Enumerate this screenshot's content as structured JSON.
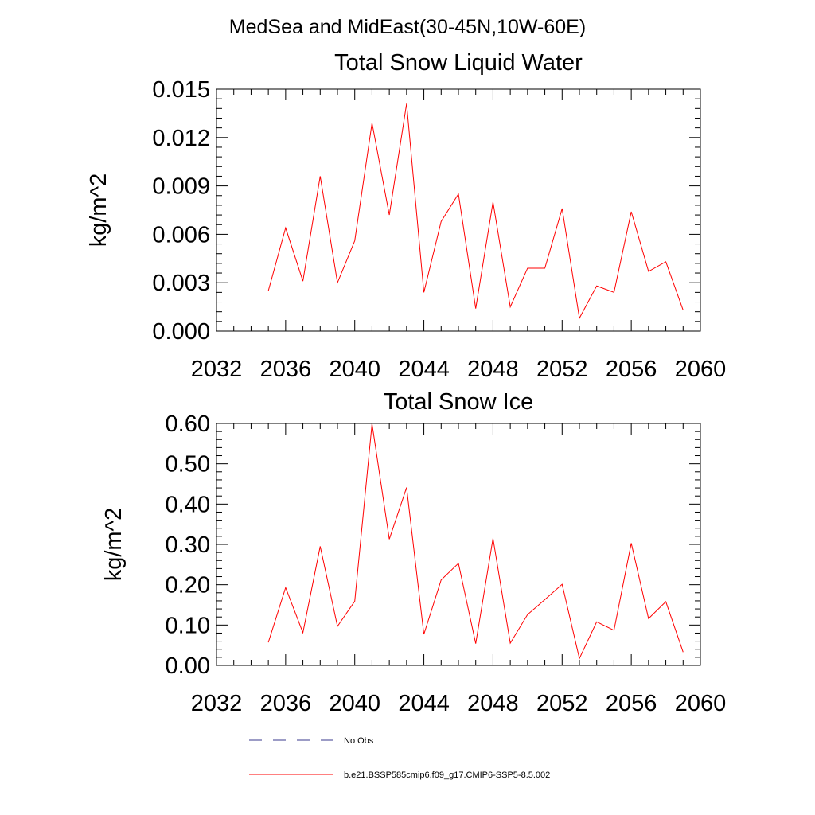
{
  "figure": {
    "title": "MedSea and MidEast(30-45N,10W-60E)"
  },
  "legend": [
    {
      "label": "No Obs",
      "color": "#3a3a8c",
      "style": "dashed"
    },
    {
      "label": "b.e21.BSSP585cmip6.f09_g17.CMIP6-SSP5-8.5.002",
      "color": "#ff0000",
      "style": "solid"
    }
  ],
  "chart_data": [
    {
      "type": "line",
      "title": "Total Snow Liquid Water",
      "xlabel": "",
      "ylabel": "kg/m^2",
      "xlim": [
        2032,
        2060
      ],
      "ylim": [
        0,
        0.015
      ],
      "xticks": [
        2032,
        2036,
        2040,
        2044,
        2048,
        2052,
        2056,
        2060
      ],
      "xtick_labels": [
        "2032",
        "2036",
        "2040",
        "2044",
        "2048",
        "2052",
        "2056",
        "2060"
      ],
      "yticks": [
        0,
        0.003,
        0.006,
        0.009,
        0.012,
        0.015
      ],
      "ytick_labels": [
        "0.000",
        "0.003",
        "0.006",
        "0.009",
        "0.012",
        "0.015"
      ],
      "grid": false,
      "x": [
        2035,
        2036,
        2037,
        2038,
        2039,
        2040,
        2041,
        2042,
        2043,
        2044,
        2045,
        2046,
        2047,
        2048,
        2049,
        2050,
        2051,
        2052,
        2053,
        2054,
        2055,
        2056,
        2057,
        2058,
        2059
      ],
      "series": [
        {
          "name": "b.e21.BSSP585cmip6.f09_g17.CMIP6-SSP5-8.5.002",
          "color": "#ff0000",
          "values": [
            0.0025,
            0.0064,
            0.0031,
            0.0096,
            0.003,
            0.0056,
            0.0129,
            0.0072,
            0.0141,
            0.0024,
            0.0068,
            0.0085,
            0.0014,
            0.008,
            0.0015,
            0.0039,
            0.0039,
            0.0076,
            0.0008,
            0.0028,
            0.0024,
            0.0074,
            0.0037,
            0.0043,
            0.0013
          ]
        }
      ]
    },
    {
      "type": "line",
      "title": "Total Snow Ice",
      "xlabel": "",
      "ylabel": "kg/m^2",
      "xlim": [
        2032,
        2060
      ],
      "ylim": [
        0,
        0.6
      ],
      "xticks": [
        2032,
        2036,
        2040,
        2044,
        2048,
        2052,
        2056,
        2060
      ],
      "xtick_labels": [
        "2032",
        "2036",
        "2040",
        "2044",
        "2048",
        "2052",
        "2056",
        "2060"
      ],
      "yticks": [
        0,
        0.1,
        0.2,
        0.3,
        0.4,
        0.5,
        0.6
      ],
      "ytick_labels": [
        "0.00",
        "0.10",
        "0.20",
        "0.30",
        "0.40",
        "0.50",
        "0.60"
      ],
      "grid": false,
      "x": [
        2035,
        2036,
        2037,
        2038,
        2039,
        2040,
        2041,
        2042,
        2043,
        2044,
        2045,
        2046,
        2047,
        2048,
        2049,
        2050,
        2051,
        2052,
        2053,
        2054,
        2055,
        2056,
        2057,
        2058,
        2059
      ],
      "series": [
        {
          "name": "b.e21.BSSP585cmip6.f09_g17.CMIP6-SSP5-8.5.002",
          "color": "#ff0000",
          "values": [
            0.057,
            0.193,
            0.081,
            0.295,
            0.097,
            0.159,
            0.599,
            0.313,
            0.441,
            0.077,
            0.212,
            0.253,
            0.054,
            0.315,
            0.055,
            0.126,
            0.163,
            0.201,
            0.017,
            0.108,
            0.087,
            0.303,
            0.116,
            0.158,
            0.033
          ]
        }
      ]
    }
  ]
}
